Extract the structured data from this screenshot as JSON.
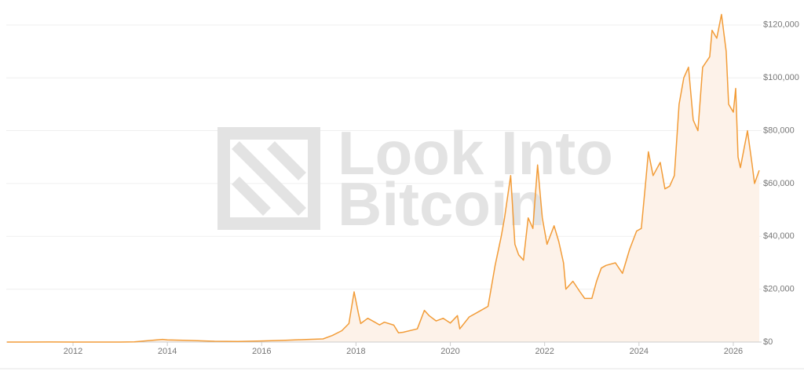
{
  "chart_data": {
    "type": "line",
    "watermark": [
      "Look Into",
      "Bitcoin"
    ],
    "x": [
      2010.6,
      2011.0,
      2011.5,
      2012.0,
      2013.0,
      2013.3,
      2013.9,
      2014.0,
      2014.5,
      2015.0,
      2015.5,
      2016.0,
      2016.5,
      2017.0,
      2017.3,
      2017.5,
      2017.7,
      2017.85,
      2017.96,
      2018.05,
      2018.1,
      2018.25,
      2018.4,
      2018.5,
      2018.6,
      2018.8,
      2018.9,
      2019.0,
      2019.3,
      2019.45,
      2019.55,
      2019.7,
      2019.85,
      2020.0,
      2020.15,
      2020.2,
      2020.4,
      2020.6,
      2020.8,
      2020.95,
      2021.08,
      2021.15,
      2021.28,
      2021.37,
      2021.45,
      2021.55,
      2021.65,
      2021.75,
      2021.85,
      2021.95,
      2022.05,
      2022.2,
      2022.3,
      2022.4,
      2022.45,
      2022.6,
      2022.75,
      2022.85,
      2023.0,
      2023.1,
      2023.2,
      2023.3,
      2023.5,
      2023.65,
      2023.8,
      2023.95,
      2024.05,
      2024.15,
      2024.2,
      2024.3,
      2024.45,
      2024.55,
      2024.65,
      2024.75,
      2024.85,
      2024.95,
      2025.05,
      2025.15,
      2025.25,
      2025.35,
      2025.5,
      2025.55,
      2025.65,
      2025.75,
      2025.85,
      2025.9,
      2026.0,
      2026.05,
      2026.1,
      2026.15,
      2026.3,
      2026.4,
      2026.45,
      2026.55
    ],
    "series": [
      {
        "color": "#f29c38",
        "fill": "#fdf2e9",
        "values": [
          0,
          0.3,
          15,
          5,
          13,
          100,
          1000,
          800,
          600,
          300,
          250,
          430,
          650,
          1000,
          1200,
          2500,
          4300,
          7000,
          19000,
          11000,
          7000,
          9000,
          7500,
          6500,
          7500,
          6400,
          3500,
          3700,
          5000,
          12000,
          10000,
          8000,
          9000,
          7200,
          10000,
          5000,
          9500,
          11500,
          13500,
          29000,
          40000,
          47000,
          63000,
          37000,
          33000,
          31000,
          47000,
          43000,
          67000,
          47000,
          37000,
          44000,
          38000,
          30000,
          20000,
          23000,
          19000,
          16500,
          16500,
          23000,
          28000,
          29000,
          30000,
          26000,
          35000,
          42000,
          43000,
          62000,
          72000,
          63000,
          68000,
          58000,
          59000,
          63000,
          90000,
          100000,
          104000,
          84000,
          80000,
          104000,
          108000,
          118000,
          115000,
          124000,
          110000,
          90000,
          87000,
          96000,
          70000,
          66000,
          80000,
          67000,
          60000,
          65000
        ]
      }
    ],
    "xlim": [
      2010.585,
      2026.6
    ],
    "xticks": [
      2012,
      2014,
      2016,
      2018,
      2020,
      2022,
      2024,
      2026
    ],
    "ylim": [
      0,
      125000
    ],
    "yticks": [
      {
        "value": 0,
        "label": "$0"
      },
      {
        "value": 20000,
        "label": "$20,000"
      },
      {
        "value": 40000,
        "label": "$40,000"
      },
      {
        "value": 60000,
        "label": "$60,000"
      },
      {
        "value": 80000,
        "label": "$80,000"
      },
      {
        "value": 100000,
        "label": "$100,000"
      },
      {
        "value": 120000,
        "label": "$120,000"
      }
    ],
    "grid": true
  }
}
